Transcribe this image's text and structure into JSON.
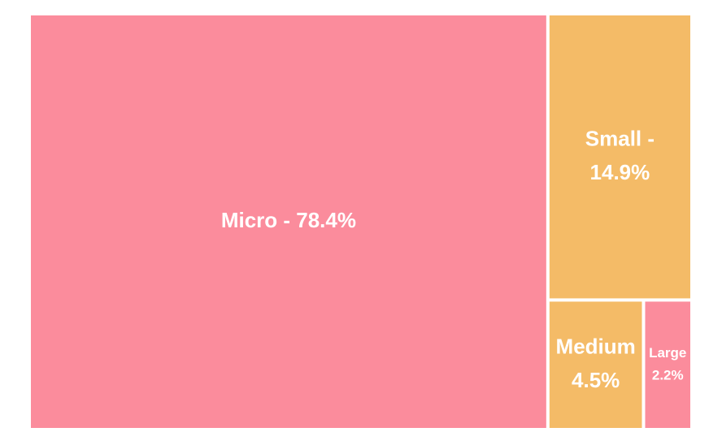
{
  "chart_data": {
    "type": "treemap",
    "title": "",
    "items": [
      {
        "name": "Micro",
        "value": 78.4,
        "label_line1": "Micro - 78.4%",
        "label_line2": "",
        "color": "#fb8c9c"
      },
      {
        "name": "Small",
        "value": 14.9,
        "label_line1": "Small -",
        "label_line2": "14.9%",
        "color": "#f4bb67"
      },
      {
        "name": "Medium",
        "value": 4.5,
        "label_line1": "Medium",
        "label_line2": "4.5%",
        "color": "#f4bb67"
      },
      {
        "name": "Large",
        "value": 2.2,
        "label_line1": "Large",
        "label_line2": "2.2%",
        "color": "#fb8c9c"
      }
    ],
    "unit": "%"
  }
}
